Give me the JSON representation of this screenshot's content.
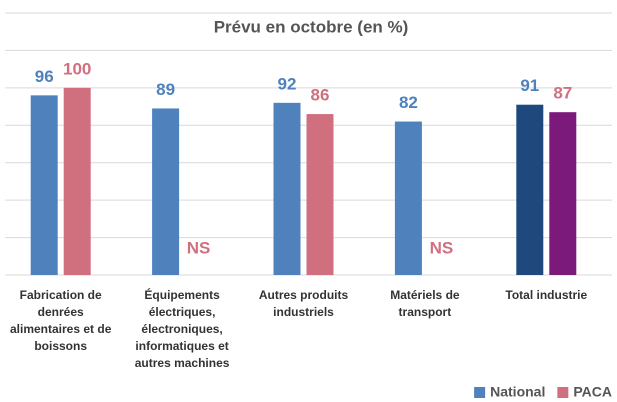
{
  "chart_data": {
    "type": "bar",
    "title": "Prévu en octobre (en %)",
    "categories": [
      "Fabrication de denrées alimentaires et de boissons",
      "Équipements électriques, électroniques, informatiques et autres machines",
      "Autres produits industriels",
      "Matériels de transport",
      "Total industrie"
    ],
    "series": [
      {
        "name": "National",
        "color": "#4f81bd",
        "point_colors": [
          "#4f81bd",
          "#4f81bd",
          "#4f81bd",
          "#4f81bd",
          "#1f497d"
        ],
        "values": [
          96,
          89,
          92,
          82,
          91
        ]
      },
      {
        "name": "PACA",
        "color": "#d0707f",
        "point_colors": [
          "#d0707f",
          "#d0707f",
          "#d0707f",
          "#d0707f",
          "#7b1a7b"
        ],
        "values": [
          100,
          null,
          86,
          null,
          87
        ],
        "value_labels": [
          "100",
          "NS",
          "86",
          "NS",
          "87"
        ]
      }
    ],
    "ylim": [
      0,
      140
    ],
    "yticks": [
      0,
      20,
      40,
      60,
      80,
      100,
      120,
      140
    ],
    "grid": true,
    "legend": "bottom-right"
  }
}
